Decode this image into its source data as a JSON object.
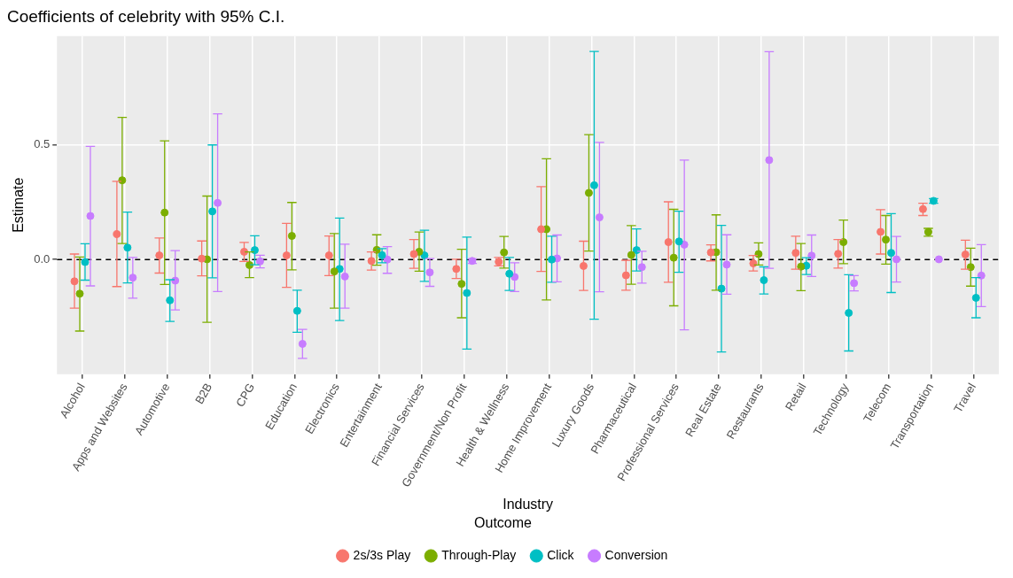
{
  "chart_data": {
    "type": "scatter",
    "title": "Coefficients of celebrity with 95% C.I.",
    "xlabel": "Industry",
    "ylabel": "Estimate",
    "legend_title": "Outcome",
    "legend": "bottom",
    "grid": true,
    "marker": "circle",
    "categories": [
      "Alcohol",
      "Apps and Websites",
      "Automotive",
      "B2B",
      "CPG",
      "Education",
      "Electronics",
      "Entertainment",
      "Financial Services",
      "Government/Non Profit",
      "Health & Wellness",
      "Home Improvement",
      "Luxury Goods",
      "Pharmaceutical",
      "Professional Services",
      "Real Estate",
      "Restaurants",
      "Retail",
      "Technology",
      "Telecom",
      "Transportation",
      "Travel"
    ],
    "ylim": [
      -0.5,
      0.975
    ],
    "yticks": [
      {
        "value": 0,
        "label": "0.0"
      },
      0.5
    ],
    "ref_lines": [
      {
        "axis": "y",
        "value": 0,
        "color": "#000000",
        "line_style": "dashed"
      }
    ],
    "series": [
      {
        "name": "2s/3s Play",
        "color": "#f8766d",
        "values": [
          -0.095,
          0.111,
          0.018,
          0.004,
          0.034,
          0.018,
          0.018,
          -0.006,
          0.024,
          -0.041,
          -0.01,
          0.132,
          -0.028,
          -0.069,
          0.076,
          0.031,
          -0.017,
          0.029,
          0.025,
          0.121,
          0.22,
          0.022
        ],
        "errors": [
          [
            -0.212,
            0.024
          ],
          [
            -0.118,
            0.341
          ],
          [
            -0.059,
            0.094
          ],
          [
            -0.071,
            0.081
          ],
          [
            -0.008,
            0.075
          ],
          [
            -0.121,
            0.158
          ],
          [
            -0.07,
            0.103
          ],
          [
            -0.046,
            0.033
          ],
          [
            -0.038,
            0.087
          ],
          [
            -0.083,
            0.001
          ],
          [
            -0.028,
            0.009
          ],
          [
            -0.052,
            0.318
          ],
          [
            -0.135,
            0.08
          ],
          [
            -0.134,
            -0.003
          ],
          [
            -0.099,
            0.252
          ],
          [
            -0.006,
            0.064
          ],
          [
            -0.05,
            0.018
          ],
          [
            -0.042,
            0.102
          ],
          [
            -0.037,
            0.087
          ],
          [
            0.024,
            0.218
          ],
          [
            0.192,
            0.246
          ],
          [
            -0.042,
            0.084
          ]
        ]
      },
      {
        "name": "Through-Play",
        "color": "#7cae00",
        "values": [
          -0.149,
          0.346,
          0.205,
          0.001,
          -0.024,
          0.103,
          -0.052,
          0.042,
          0.034,
          -0.106,
          0.031,
          0.132,
          0.291,
          0.02,
          0.008,
          0.032,
          0.024,
          -0.031,
          0.076,
          0.087,
          0.12,
          -0.033
        ],
        "errors": [
          [
            -0.312,
            0.011
          ],
          [
            0.07,
            0.62
          ],
          [
            -0.109,
            0.518
          ],
          [
            -0.274,
            0.277
          ],
          [
            -0.079,
            0.033
          ],
          [
            -0.045,
            0.249
          ],
          [
            -0.212,
            0.113
          ],
          [
            -0.025,
            0.108
          ],
          [
            -0.051,
            0.12
          ],
          [
            -0.254,
            0.045
          ],
          [
            -0.037,
            0.101
          ],
          [
            -0.176,
            0.44
          ],
          [
            0.037,
            0.545
          ],
          [
            -0.108,
            0.148
          ],
          [
            -0.202,
            0.219
          ],
          [
            -0.134,
            0.195
          ],
          [
            -0.024,
            0.073
          ],
          [
            -0.136,
            0.07
          ],
          [
            -0.018,
            0.172
          ],
          [
            -0.02,
            0.192
          ],
          [
            0.102,
            0.136
          ],
          [
            -0.116,
            0.05
          ]
        ]
      },
      {
        "name": "Click",
        "color": "#00bfc4",
        "values": [
          -0.011,
          0.052,
          -0.178,
          0.21,
          0.041,
          -0.224,
          -0.041,
          0.019,
          0.018,
          -0.146,
          -0.062,
          0.0,
          0.324,
          0.041,
          0.079,
          -0.127,
          -0.09,
          -0.027,
          -0.233,
          0.029,
          0.256,
          -0.167
        ],
        "errors": [
          [
            -0.09,
            0.069
          ],
          [
            -0.102,
            0.207
          ],
          [
            -0.27,
            -0.088
          ],
          [
            -0.08,
            0.5
          ],
          [
            -0.023,
            0.104
          ],
          [
            -0.317,
            -0.134
          ],
          [
            -0.266,
            0.181
          ],
          [
            -0.014,
            0.048
          ],
          [
            -0.095,
            0.128
          ],
          [
            -0.391,
            0.098
          ],
          [
            -0.135,
            0.009
          ],
          [
            -0.099,
            0.102
          ],
          [
            -0.26,
            0.908
          ],
          [
            -0.05,
            0.134
          ],
          [
            -0.056,
            0.211
          ],
          [
            -0.403,
            0.149
          ],
          [
            -0.15,
            -0.032
          ],
          [
            -0.065,
            0.008
          ],
          [
            -0.399,
            -0.066
          ],
          [
            -0.144,
            0.2
          ],
          [
            0.246,
            0.266
          ],
          [
            -0.254,
            -0.079
          ]
        ]
      },
      {
        "name": "Conversion",
        "color": "#c77cff",
        "values": [
          0.19,
          -0.079,
          -0.092,
          0.247,
          -0.008,
          -0.368,
          -0.074,
          0.0,
          -0.056,
          -0.006,
          -0.076,
          0.005,
          0.184,
          -0.033,
          0.065,
          -0.022,
          0.434,
          0.017,
          -0.103,
          0.001,
          0.001,
          -0.07
        ],
        "errors": [
          [
            -0.115,
            0.494
          ],
          [
            -0.169,
            0.009
          ],
          [
            -0.22,
            0.039
          ],
          [
            -0.14,
            0.636
          ],
          [
            -0.036,
            0.019
          ],
          [
            -0.431,
            -0.305
          ],
          [
            -0.212,
            0.067
          ],
          [
            -0.06,
            0.056
          ],
          [
            -0.117,
            0.004
          ],
          [
            -0.017,
            0.003
          ],
          [
            -0.14,
            -0.014
          ],
          [
            -0.097,
            0.107
          ],
          [
            -0.141,
            0.511
          ],
          [
            -0.103,
            0.036
          ],
          [
            -0.307,
            0.434
          ],
          [
            -0.151,
            0.108
          ],
          [
            -0.038,
            0.907
          ],
          [
            -0.074,
            0.107
          ],
          [
            -0.137,
            -0.07
          ],
          [
            -0.098,
            0.101
          ],
          null,
          [
            -0.205,
            0.065
          ]
        ]
      }
    ]
  }
}
